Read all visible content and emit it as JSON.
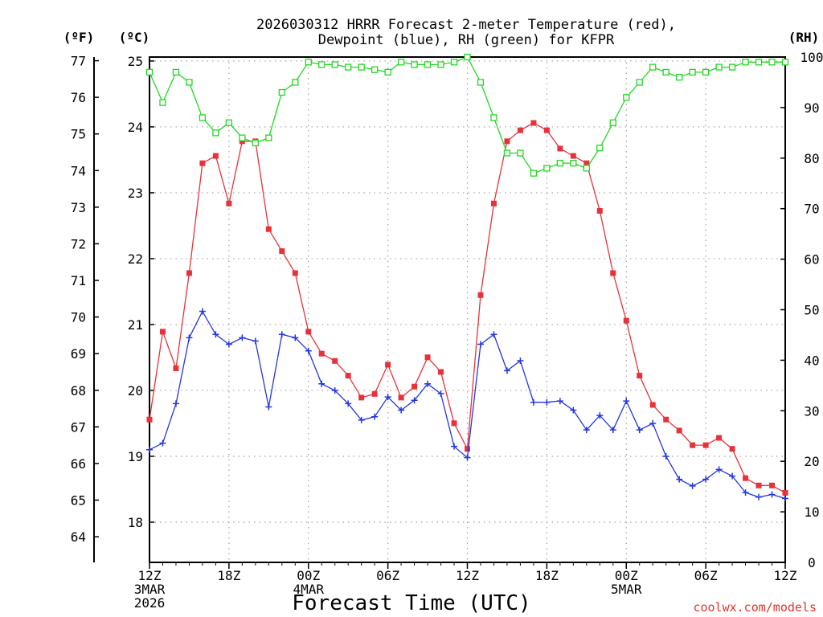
{
  "chart_data": {
    "type": "line",
    "title": [
      "2026030312 HRRR Forecast 2-meter Temperature (red),",
      "Dewpoint (blue), RH (green) for KFPR"
    ],
    "xlabel": "Forecast Time (UTC)",
    "credit": "coolwx.com/models",
    "units": {
      "f": "(ºF)",
      "c": "(ºC)",
      "rh": "(RH)"
    },
    "x_ticks": [
      "12Z",
      "18Z",
      "00Z",
      "06Z",
      "12Z",
      "18Z",
      "00Z",
      "06Z",
      "12Z"
    ],
    "x_tick_hours": [
      0,
      6,
      12,
      18,
      24,
      30,
      36,
      42,
      48
    ],
    "date_labels": [
      {
        "hour": 0,
        "lines": [
          "3MAR",
          "2026"
        ]
      },
      {
        "hour": 12,
        "lines": [
          "4MAR"
        ]
      },
      {
        "hour": 36,
        "lines": [
          "5MAR"
        ]
      }
    ],
    "xlim": [
      0,
      48
    ],
    "y_left_f": {
      "ylim": [
        63.3,
        77.1
      ],
      "ticks": [
        64,
        65,
        66,
        67,
        68,
        69,
        70,
        71,
        72,
        73,
        74,
        75,
        76,
        77
      ]
    },
    "y_left_c": {
      "ylim": [
        17.39,
        25.06
      ],
      "ticks": [
        18,
        19,
        20,
        21,
        22,
        23,
        24,
        25
      ]
    },
    "y_right_rh": {
      "ylim": [
        0,
        100
      ],
      "ticks": [
        0,
        10,
        20,
        30,
        40,
        50,
        60,
        70,
        80,
        90,
        100
      ]
    },
    "series": [
      {
        "name": "2-meter Temperature",
        "color": "#e8323a",
        "marker": "filled-square",
        "axis": "f",
        "values": [
          67.2,
          69.6,
          68.6,
          71.2,
          74.2,
          74.4,
          73.1,
          74.8,
          74.8,
          72.4,
          71.8,
          71.2,
          69.6,
          69.0,
          68.8,
          68.4,
          67.8,
          67.9,
          68.7,
          67.8,
          68.1,
          68.9,
          68.5,
          67.1,
          66.4,
          70.6,
          73.1,
          74.8,
          75.1,
          75.3,
          75.1,
          74.6,
          74.4,
          74.2,
          72.9,
          71.2,
          69.9,
          68.4,
          67.6,
          67.2,
          66.9,
          66.5,
          66.5,
          66.7,
          66.4,
          65.6,
          65.4,
          65.4,
          65.2
        ]
      },
      {
        "name": "Dewpoint",
        "color": "#2436e0",
        "marker": "plus",
        "axis": "c",
        "values": [
          19.1,
          19.2,
          19.8,
          20.8,
          21.2,
          20.85,
          20.7,
          20.8,
          20.75,
          19.75,
          20.85,
          20.8,
          20.6,
          20.1,
          20.0,
          19.8,
          19.55,
          19.6,
          19.9,
          19.7,
          19.85,
          20.1,
          19.95,
          19.15,
          18.98,
          20.7,
          20.85,
          20.3,
          20.45,
          19.82,
          19.82,
          19.84,
          19.7,
          19.4,
          19.62,
          19.4,
          19.84,
          19.4,
          19.5,
          19.0,
          18.65,
          18.55,
          18.65,
          18.8,
          18.7,
          18.45,
          18.38,
          18.42,
          18.36
        ]
      },
      {
        "name": "RH",
        "color": "#22d822",
        "marker": "open-square",
        "axis": "rh",
        "values": [
          97,
          91,
          97,
          95,
          88,
          85,
          87,
          84,
          83,
          84,
          93,
          95,
          99,
          98.5,
          98.5,
          98,
          98,
          97.5,
          97,
          99,
          98.5,
          98.5,
          98.5,
          99,
          100,
          95,
          88,
          81,
          81,
          77,
          78,
          79,
          79,
          78,
          82,
          87,
          92,
          95,
          98,
          97,
          96,
          97,
          97,
          98,
          98,
          99,
          99,
          99,
          99
        ]
      }
    ]
  }
}
